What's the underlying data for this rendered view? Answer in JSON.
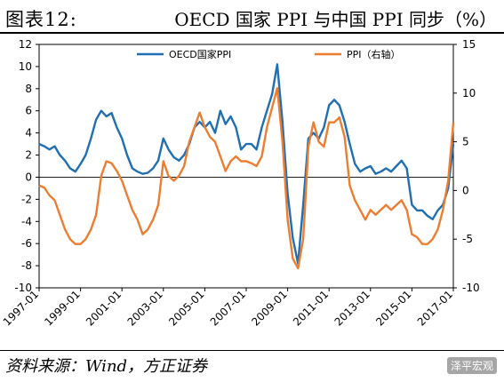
{
  "header": {
    "figure_number": "图表12:",
    "title": "OECD 国家 PPI 与中国 PPI 同步（%）"
  },
  "footer": {
    "source": "资料来源：Wind，方正证券",
    "watermark": "泽平宏观"
  },
  "chart_data": {
    "type": "line",
    "x": [
      "1997-01",
      "1997-04",
      "1997-07",
      "1997-10",
      "1998-01",
      "1998-04",
      "1998-07",
      "1998-10",
      "1999-01",
      "1999-04",
      "1999-07",
      "1999-10",
      "2000-01",
      "2000-04",
      "2000-07",
      "2000-10",
      "2001-01",
      "2001-04",
      "2001-07",
      "2001-10",
      "2002-01",
      "2002-04",
      "2002-07",
      "2002-10",
      "2003-01",
      "2003-04",
      "2003-07",
      "2003-10",
      "2004-01",
      "2004-04",
      "2004-07",
      "2004-10",
      "2005-01",
      "2005-04",
      "2005-07",
      "2005-10",
      "2006-01",
      "2006-04",
      "2006-07",
      "2006-10",
      "2007-01",
      "2007-04",
      "2007-07",
      "2007-10",
      "2008-01",
      "2008-04",
      "2008-07",
      "2008-10",
      "2009-01",
      "2009-04",
      "2009-07",
      "2009-10",
      "2010-01",
      "2010-04",
      "2010-07",
      "2010-10",
      "2011-01",
      "2011-04",
      "2011-07",
      "2011-10",
      "2012-01",
      "2012-04",
      "2012-07",
      "2012-10",
      "2013-01",
      "2013-04",
      "2013-07",
      "2013-10",
      "2014-01",
      "2014-04",
      "2014-07",
      "2014-10",
      "2015-01",
      "2015-04",
      "2015-07",
      "2015-10",
      "2016-01",
      "2016-04",
      "2016-07",
      "2016-10",
      "2017-01"
    ],
    "series": [
      {
        "name": "OECD国家PPI",
        "axis": "left",
        "color": "#1f6fb2",
        "values": [
          3.0,
          2.8,
          2.5,
          2.8,
          2.0,
          1.5,
          0.8,
          0.5,
          1.2,
          2.0,
          3.5,
          5.2,
          6.0,
          5.5,
          5.8,
          4.5,
          3.5,
          2.0,
          0.8,
          0.5,
          0.3,
          0.4,
          0.8,
          1.5,
          3.5,
          2.5,
          1.8,
          1.5,
          2.0,
          3.0,
          4.5,
          5.0,
          4.5,
          5.0,
          4.0,
          6.0,
          4.8,
          5.5,
          4.5,
          2.5,
          3.0,
          3.0,
          2.5,
          4.5,
          6.0,
          7.5,
          10.2,
          5.0,
          -1.5,
          -5.5,
          -7.8,
          -2.5,
          3.5,
          4.0,
          3.5,
          4.5,
          6.5,
          7.0,
          6.5,
          5.0,
          3.0,
          1.2,
          0.5,
          0.8,
          1.0,
          0.3,
          0.5,
          0.8,
          0.5,
          1.0,
          1.5,
          0.8,
          -2.5,
          -3.0,
          -3.0,
          -3.5,
          -3.8,
          -3.0,
          -2.5,
          -1.0,
          3.0
        ]
      },
      {
        "name": "PPI（右轴）",
        "axis": "right",
        "color": "#ed7d31",
        "values": [
          0.5,
          0.3,
          -0.5,
          -1.0,
          -2.5,
          -4.0,
          -5.0,
          -5.5,
          -5.5,
          -5.0,
          -4.0,
          -2.5,
          1.5,
          3.0,
          2.8,
          2.0,
          1.0,
          -0.5,
          -2.0,
          -3.0,
          -4.5,
          -4.0,
          -3.0,
          -1.5,
          3.0,
          1.5,
          1.0,
          1.5,
          2.5,
          5.0,
          6.5,
          8.0,
          6.5,
          5.5,
          5.0,
          3.5,
          2.0,
          3.0,
          3.5,
          3.0,
          3.0,
          2.8,
          2.5,
          3.5,
          6.5,
          8.5,
          10.5,
          5.0,
          -3.0,
          -7.0,
          -8.0,
          -5.0,
          4.5,
          7.0,
          5.0,
          4.5,
          7.0,
          7.0,
          7.5,
          5.5,
          0.5,
          -1.0,
          -2.0,
          -3.0,
          -2.0,
          -2.5,
          -2.0,
          -1.5,
          -2.0,
          -1.5,
          -1.0,
          -2.0,
          -4.5,
          -4.8,
          -5.5,
          -5.5,
          -5.0,
          -4.0,
          -2.0,
          1.0,
          7.0
        ]
      }
    ],
    "left_axis": {
      "range": [
        -10,
        12
      ],
      "ticks": [
        "-10",
        "-8",
        "-6",
        "-4",
        "-2",
        "0",
        "2",
        "4",
        "6",
        "8",
        "10",
        "12"
      ]
    },
    "right_axis": {
      "range": [
        -10,
        15
      ],
      "ticks": [
        "-10",
        "-5",
        "0",
        "5",
        "10",
        "15"
      ]
    },
    "x_ticks": [
      "1997-01",
      "1999-01",
      "2001-01",
      "2003-01",
      "2005-01",
      "2007-01",
      "2009-01",
      "2011-01",
      "2013-01",
      "2015-01",
      "2017-01"
    ],
    "legend_placement": "top"
  }
}
